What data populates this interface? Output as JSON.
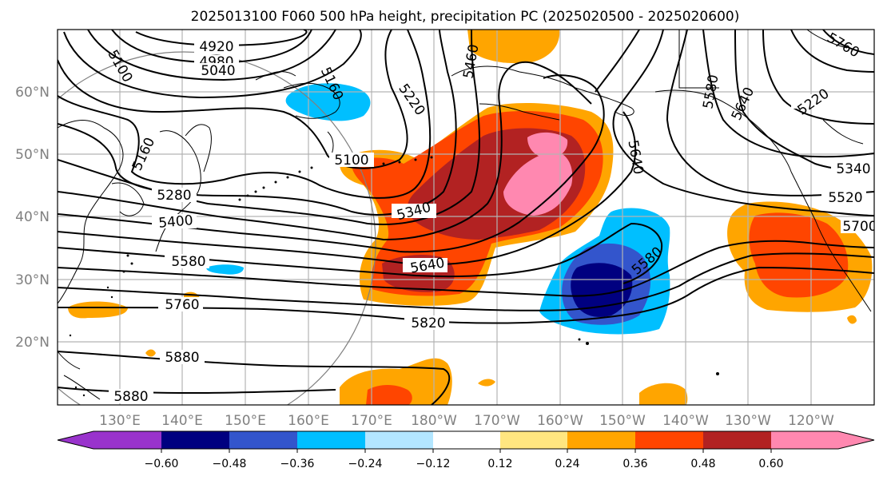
{
  "title": "2025013100 F060 500 hPa height, precipitation PC (2025020500 - 2025020600)",
  "lat_labels": [
    "60°N",
    "50°N",
    "40°N",
    "30°N",
    "20°N"
  ],
  "lon_labels": [
    "130°E",
    "140°E",
    "150°E",
    "160°E",
    "170°E",
    "180°W",
    "170°W",
    "160°W",
    "150°W",
    "140°W",
    "130°W",
    "120°W"
  ],
  "contour_labels": [
    "4920",
    "4980",
    "5040",
    "5100",
    "5160",
    "5220",
    "5280",
    "5340",
    "5400",
    "5460",
    "5520",
    "5580",
    "5640",
    "5700",
    "5760",
    "5820",
    "5880",
    "5760",
    "5100",
    "5160",
    "5220",
    "5340",
    "5640",
    "5580",
    "5880",
    "5460",
    "5520",
    "5580",
    "5640"
  ],
  "colorbar": {
    "ticks": [
      "−0.60",
      "−0.48",
      "−0.36",
      "−0.24",
      "−0.12",
      "0.12",
      "0.24",
      "0.36",
      "0.48",
      "0.60"
    ],
    "colors": [
      "#9933cc",
      "#000080",
      "#3355cc",
      "#00bfff",
      "#b3e6ff",
      "#ffffff",
      "#ffe680",
      "#ffa500",
      "#ff4500",
      "#b22222",
      "#ff88b0"
    ]
  },
  "palette": {
    "grid": "#b3b3b3",
    "contour": "#000000"
  }
}
